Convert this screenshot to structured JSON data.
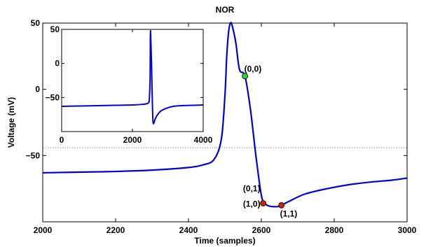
{
  "chart_data": [
    {
      "type": "line",
      "title": "NOR",
      "xlabel": "Time (samples)",
      "ylabel": "Voltage (mV)",
      "xlim": [
        2000,
        3000
      ],
      "ylim": [
        -100,
        50
      ],
      "xticks": [
        "2000",
        "2200",
        "2400",
        "2600",
        "2800",
        "3000"
      ],
      "yticks": [
        "50",
        "0",
        "−50"
      ],
      "grid": false,
      "series": [
        {
          "color": "#0000dd",
          "x": [
            2000,
            2100,
            2200,
            2300,
            2400,
            2440,
            2470,
            2490,
            2500,
            2505,
            2510,
            2515,
            2520,
            2530,
            2540,
            2555,
            2570,
            2585,
            2600,
            2610,
            2620,
            2630,
            2645,
            2655,
            2680,
            2720,
            2780,
            2840,
            2900,
            2960,
            3000
          ],
          "y": [
            -63,
            -62.5,
            -62,
            -61,
            -59,
            -57,
            -53,
            -38,
            -5,
            25,
            43,
            50,
            48,
            35,
            15,
            10,
            -15,
            -50,
            -80,
            -86,
            -88,
            -88.5,
            -88.5,
            -87.5,
            -84,
            -79,
            -75,
            -72,
            -70,
            -68.5,
            -67
          ]
        }
      ],
      "threshold": {
        "y": -44,
        "style": "dotted",
        "color": "#888888"
      },
      "markers": [
        {
          "label": "(0,0)",
          "x": 2555,
          "y": 10,
          "color": "#22dd22"
        },
        {
          "label": "(0,1)\n(1,0)",
          "label_lines": [
            "(0,1)",
            "(1,0)"
          ],
          "x": 2605,
          "y": -86,
          "color": "#cc2200"
        },
        {
          "label": "(1,1)",
          "x": 2655,
          "y": -87.5,
          "color": "#cc2200"
        }
      ]
    },
    {
      "type": "line",
      "title": "",
      "xlim": [
        0,
        4000
      ],
      "ylim": [
        -100,
        50
      ],
      "xticks": [
        "0",
        "2000",
        "4000"
      ],
      "yticks": [
        "50",
        "0",
        "−50"
      ],
      "grid": false,
      "series": [
        {
          "color": "#0000dd",
          "x": [
            0,
            500,
            1000,
            1500,
            2000,
            2300,
            2450,
            2480,
            2500,
            2505,
            2512,
            2520,
            2540,
            2560,
            2575,
            2590,
            2610,
            2640,
            2700,
            2800,
            2950,
            3150,
            3400,
            3700,
            4000
          ],
          "y": [
            -63,
            -62.5,
            -62,
            -61.5,
            -61,
            -60,
            -58,
            -50,
            -20,
            30,
            48,
            35,
            0,
            -50,
            -80,
            -88,
            -87,
            -82,
            -76,
            -70,
            -66,
            -63,
            -62,
            -61.5,
            -61
          ]
        }
      ]
    }
  ]
}
